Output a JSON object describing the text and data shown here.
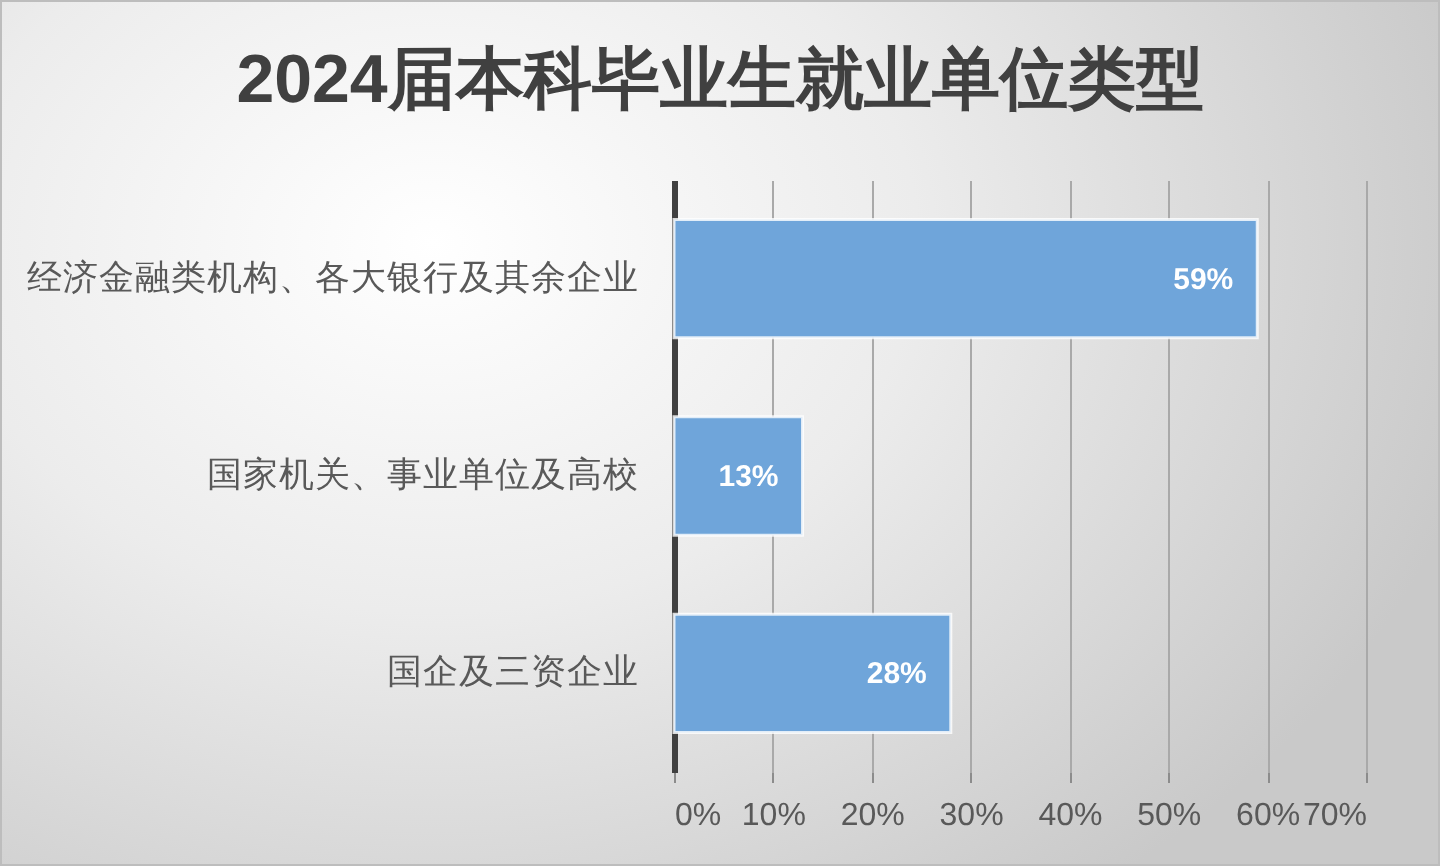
{
  "chart_data": {
    "type": "bar",
    "title": "2024届本科毕业生就业单位类型",
    "orientation": "horizontal",
    "categories": [
      "经济金融类机构、各大银行及其余企业",
      "国家机关、事业单位及高校",
      "国企及三资企业"
    ],
    "values": [
      59,
      13,
      28
    ],
    "color": "#6fa5da",
    "value_labels": [
      "59%",
      "13%",
      "28%"
    ],
    "xlim": [
      0,
      70
    ],
    "xticks": [
      {
        "value": 0,
        "label": "0%"
      },
      {
        "value": 10,
        "label": "10%"
      },
      {
        "value": 20,
        "label": "20%"
      },
      {
        "value": 30,
        "label": "30%"
      },
      {
        "value": 40,
        "label": "40%"
      },
      {
        "value": 50,
        "label": "50%"
      },
      {
        "value": 60,
        "label": "60%"
      },
      {
        "value": 70,
        "label": "70%"
      }
    ],
    "grid": "x"
  }
}
